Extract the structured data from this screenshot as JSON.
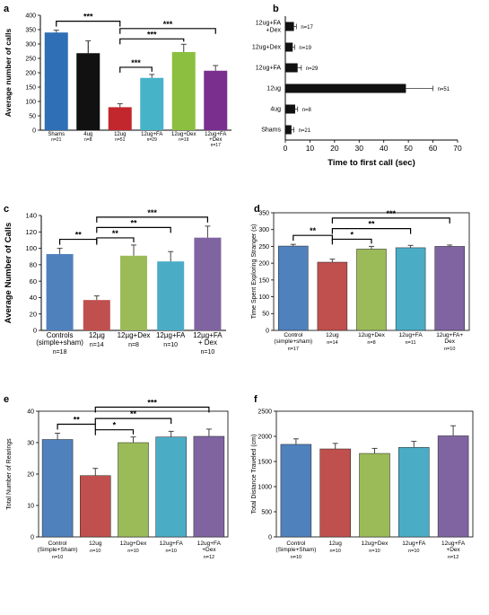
{
  "chart_data": [
    {
      "panel_label": "a",
      "type": "bar",
      "ylabel": "Average number of calls",
      "ylim": [
        0,
        400
      ],
      "yticks": [
        0,
        50,
        100,
        150,
        200,
        250,
        300,
        350,
        400
      ],
      "categories": [
        "Shams",
        "4ug",
        "12ug",
        "12ug+FA",
        "12ug+Dex",
        "12ug+FA\n+Dex"
      ],
      "n_labels": [
        "n=21",
        "n=8",
        "n=51",
        "n=29",
        "n=19",
        "n=17"
      ],
      "values": [
        340,
        268,
        80,
        182,
        272,
        207
      ],
      "errors": [
        8,
        43,
        12,
        12,
        27,
        18
      ],
      "colors": [
        "#2f6fb5",
        "#111111",
        "#c1272d",
        "#46b3c9",
        "#8cbf3f",
        "#7a2f8e"
      ],
      "significance": [
        {
          "from": 0,
          "to": 2,
          "label": "***"
        },
        {
          "from": 2,
          "to": 3,
          "label": "***"
        },
        {
          "from": 2,
          "to": 4,
          "label": "***"
        },
        {
          "from": 2,
          "to": 5,
          "label": "***"
        }
      ]
    },
    {
      "panel_label": "b",
      "type": "bar",
      "orientation": "horizontal",
      "xlabel": "Time to first call (sec)",
      "xlim": [
        0,
        70
      ],
      "xticks": [
        0,
        10,
        20,
        30,
        40,
        50,
        60,
        70
      ],
      "categories": [
        "12ug+FA\n+Dex",
        "12ug+Dex",
        "12ug+FA",
        "12ug",
        "4ug",
        "Shams"
      ],
      "n_labels": [
        "n=17",
        "n=19",
        "n=29",
        "n=51",
        "n=8",
        "n=21"
      ],
      "values": [
        3.5,
        3,
        5,
        49,
        4,
        2.5
      ],
      "errors": [
        1,
        0.8,
        1.5,
        11,
        1,
        1
      ],
      "colors": [
        "#111111",
        "#111111",
        "#111111",
        "#111111",
        "#111111",
        "#111111"
      ]
    },
    {
      "panel_label": "c",
      "type": "bar",
      "ylabel": "Average Number of Calls",
      "ylim": [
        0,
        140
      ],
      "yticks": [
        0,
        20,
        40,
        60,
        80,
        100,
        120,
        140
      ],
      "categories": [
        "Controls\n(simple+sham)",
        "12µg",
        "12µg+Dex",
        "12µg+FA",
        "12µg+FA\n+ Dex"
      ],
      "n_labels": [
        "n=18",
        "n=14",
        "n=8",
        "n=10",
        "n=10"
      ],
      "values": [
        93,
        37,
        91,
        84,
        113
      ],
      "errors": [
        7,
        5,
        13,
        12,
        14
      ],
      "colors": [
        "#4f81bd",
        "#c0504d",
        "#9bbb59",
        "#4bacc6",
        "#8064a2"
      ],
      "significance": [
        {
          "from": 0,
          "to": 1,
          "label": "**"
        },
        {
          "from": 1,
          "to": 2,
          "label": "**"
        },
        {
          "from": 1,
          "to": 3,
          "label": "**"
        },
        {
          "from": 1,
          "to": 4,
          "label": "***"
        }
      ]
    },
    {
      "panel_label": "d",
      "type": "bar",
      "ylabel": "Time Spent Exploring Stranger (s)",
      "ylim": [
        0,
        350
      ],
      "yticks": [
        0,
        50,
        100,
        150,
        200,
        250,
        300,
        350
      ],
      "categories": [
        "Control\n(simple+sham)",
        "12ug",
        "12ug+Dex",
        "12ug+FA",
        "12ug+FA+\nDex"
      ],
      "n_labels": [
        "n=17",
        "n=14",
        "n=8",
        "n=11",
        "n=10"
      ],
      "values": [
        251,
        203,
        242,
        246,
        250
      ],
      "errors": [
        5,
        9,
        8,
        7,
        4
      ],
      "colors": [
        "#4f81bd",
        "#c0504d",
        "#9bbb59",
        "#4bacc6",
        "#8064a2"
      ],
      "significance": [
        {
          "from": 0,
          "to": 1,
          "label": "**"
        },
        {
          "from": 1,
          "to": 2,
          "label": "*"
        },
        {
          "from": 1,
          "to": 3,
          "label": "**"
        },
        {
          "from": 1,
          "to": 4,
          "label": "***"
        }
      ]
    },
    {
      "panel_label": "e",
      "type": "bar",
      "ylabel": "Total Number of Rearings",
      "ylim": [
        0,
        40
      ],
      "yticks": [
        0,
        10,
        20,
        30,
        40
      ],
      "categories": [
        "Control\n(Simple+Sham)",
        "12ug",
        "12ug+Dex",
        "12ug+FA",
        "12ug+FA\n+Dex"
      ],
      "n_labels": [
        "n=10",
        "n=10",
        "n=10",
        "n=10",
        "n=12"
      ],
      "values": [
        31,
        19.5,
        30,
        31.8,
        32
      ],
      "errors": [
        2,
        2.3,
        1.8,
        1.8,
        2.3
      ],
      "colors": [
        "#4f81bd",
        "#c0504d",
        "#9bbb59",
        "#4bacc6",
        "#8064a2"
      ],
      "significance": [
        {
          "from": 0,
          "to": 1,
          "label": "**"
        },
        {
          "from": 1,
          "to": 2,
          "label": "*"
        },
        {
          "from": 1,
          "to": 3,
          "label": "**"
        },
        {
          "from": 1,
          "to": 4,
          "label": "***"
        }
      ]
    },
    {
      "panel_label": "f",
      "type": "bar",
      "ylabel": "Total Distance Traveled (cm)",
      "ylim": [
        0,
        2500
      ],
      "yticks": [
        0,
        500,
        1000,
        1500,
        2000,
        2500
      ],
      "categories": [
        "Control\n(Simple+Sham)",
        "12ug",
        "12ug+Dex",
        "12ug+FA",
        "12ug+FA\n+Dex"
      ],
      "n_labels": [
        "n=10",
        "n=10",
        "n=10",
        "n=10",
        "n=12"
      ],
      "values": [
        1840,
        1750,
        1660,
        1780,
        2010
      ],
      "errors": [
        110,
        110,
        100,
        120,
        200
      ],
      "colors": [
        "#4f81bd",
        "#c0504d",
        "#9bbb59",
        "#4bacc6",
        "#8064a2"
      ]
    }
  ]
}
